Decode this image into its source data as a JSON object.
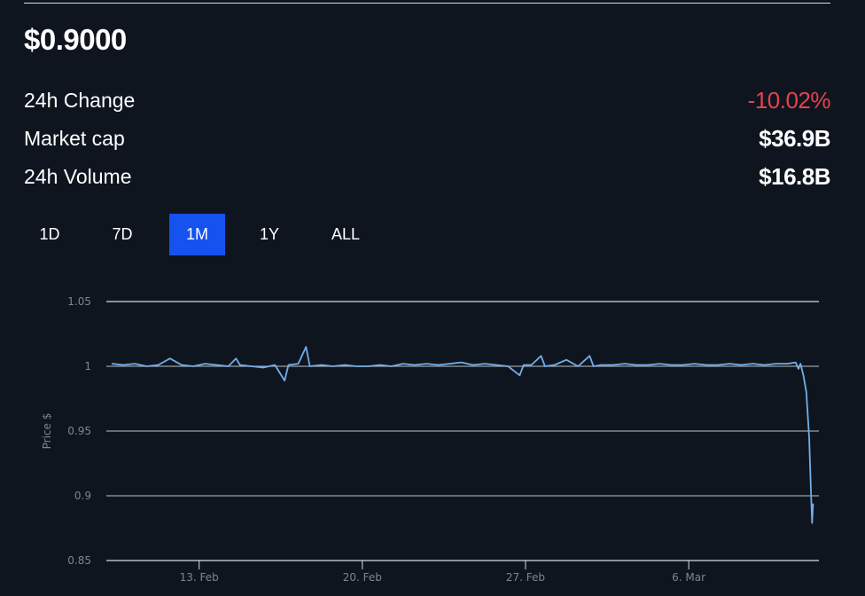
{
  "header": {
    "price": "$0.9000"
  },
  "stats": [
    {
      "label": "24h Change",
      "value": "-10.02%",
      "negative": true
    },
    {
      "label": "Market cap",
      "value": "$36.9B",
      "negative": false
    },
    {
      "label": "24h Volume",
      "value": "$16.8B",
      "negative": false
    }
  ],
  "range_tabs": [
    {
      "label": "1D",
      "active": false
    },
    {
      "label": "7D",
      "active": false
    },
    {
      "label": "1M",
      "active": true
    },
    {
      "label": "1Y",
      "active": false
    },
    {
      "label": "ALL",
      "active": false
    }
  ],
  "colors": {
    "background": "#0f151f",
    "accent": "#1652f0",
    "negative": "#e5424f",
    "line": "#74ade8"
  },
  "chart_data": {
    "type": "line",
    "ylabel": "Price $",
    "xlabel": "",
    "ylim": [
      0.85,
      1.05
    ],
    "yticks": [
      "0.85",
      "0.9",
      "0.95",
      "1",
      "1.05"
    ],
    "xlim": [
      "02-09 00:30",
      "03-11 14:00"
    ],
    "xticks": [
      {
        "label": "13. Feb",
        "date": "02-13 00:00"
      },
      {
        "label": "20. Feb",
        "date": "02-20 00:00"
      },
      {
        "label": "27. Feb",
        "date": "02-27 00:00"
      },
      {
        "label": "6. Mar",
        "date": "03-06 00:00"
      }
    ],
    "grid": true,
    "series": [
      {
        "points": [
          [
            "02-09 06:00",
            1.002
          ],
          [
            "02-09 18:00",
            1.001
          ],
          [
            "02-10 06:00",
            1.002
          ],
          [
            "02-10 18:00",
            1.0
          ],
          [
            "02-11 06:00",
            1.001
          ],
          [
            "02-11 18:00",
            1.006
          ],
          [
            "02-12 06:00",
            1.001
          ],
          [
            "02-12 18:00",
            1.0
          ],
          [
            "02-13 06:00",
            1.002
          ],
          [
            "02-13 18:00",
            1.001
          ],
          [
            "02-14 06:00",
            1.0
          ],
          [
            "02-14 14:00",
            1.006
          ],
          [
            "02-14 18:00",
            1.001
          ],
          [
            "02-15 06:00",
            1.0
          ],
          [
            "02-15 18:00",
            0.999
          ],
          [
            "02-16 06:00",
            1.001
          ],
          [
            "02-16 16:00",
            0.989
          ],
          [
            "02-16 20:00",
            1.001
          ],
          [
            "02-17 06:00",
            1.002
          ],
          [
            "02-17 14:00",
            1.015
          ],
          [
            "02-17 18:00",
            1.0
          ],
          [
            "02-18 06:00",
            1.001
          ],
          [
            "02-18 18:00",
            1.0
          ],
          [
            "02-19 06:00",
            1.001
          ],
          [
            "02-19 18:00",
            1.0
          ],
          [
            "02-20 06:00",
            1.0
          ],
          [
            "02-20 18:00",
            1.001
          ],
          [
            "02-21 06:00",
            1.0
          ],
          [
            "02-21 18:00",
            1.002
          ],
          [
            "02-22 06:00",
            1.001
          ],
          [
            "02-22 18:00",
            1.002
          ],
          [
            "02-23 06:00",
            1.001
          ],
          [
            "02-23 18:00",
            1.002
          ],
          [
            "02-24 06:00",
            1.003
          ],
          [
            "02-24 18:00",
            1.001
          ],
          [
            "02-25 06:00",
            1.002
          ],
          [
            "02-25 18:00",
            1.001
          ],
          [
            "02-26 06:00",
            1.0
          ],
          [
            "02-26 18:00",
            0.993
          ],
          [
            "02-26 22:00",
            1.001
          ],
          [
            "02-27 06:00",
            1.001
          ],
          [
            "02-27 16:00",
            1.008
          ],
          [
            "02-27 20:00",
            1.0
          ],
          [
            "02-28 06:00",
            1.001
          ],
          [
            "02-28 18:00",
            1.005
          ],
          [
            "03-01 06:00",
            1.0
          ],
          [
            "03-01 18:00",
            1.008
          ],
          [
            "03-01 22:00",
            1.0
          ],
          [
            "03-02 06:00",
            1.001
          ],
          [
            "03-02 18:00",
            1.001
          ],
          [
            "03-03 06:00",
            1.002
          ],
          [
            "03-03 18:00",
            1.001
          ],
          [
            "03-04 06:00",
            1.001
          ],
          [
            "03-04 18:00",
            1.002
          ],
          [
            "03-05 06:00",
            1.001
          ],
          [
            "03-05 18:00",
            1.001
          ],
          [
            "03-06 06:00",
            1.002
          ],
          [
            "03-06 18:00",
            1.001
          ],
          [
            "03-07 06:00",
            1.001
          ],
          [
            "03-07 18:00",
            1.002
          ],
          [
            "03-08 06:00",
            1.001
          ],
          [
            "03-08 18:00",
            1.002
          ],
          [
            "03-09 06:00",
            1.001
          ],
          [
            "03-09 18:00",
            1.002
          ],
          [
            "03-10 06:00",
            1.002
          ],
          [
            "03-10 14:00",
            1.003
          ],
          [
            "03-10 17:00",
            0.998
          ],
          [
            "03-10 19:00",
            1.002
          ],
          [
            "03-10 22:00",
            0.993
          ],
          [
            "03-11 01:00",
            0.98
          ],
          [
            "03-11 04:00",
            0.945
          ],
          [
            "03-11 06:00",
            0.9
          ],
          [
            "03-11 07:00",
            0.879
          ],
          [
            "03-11 08:00",
            0.894
          ]
        ]
      }
    ]
  }
}
